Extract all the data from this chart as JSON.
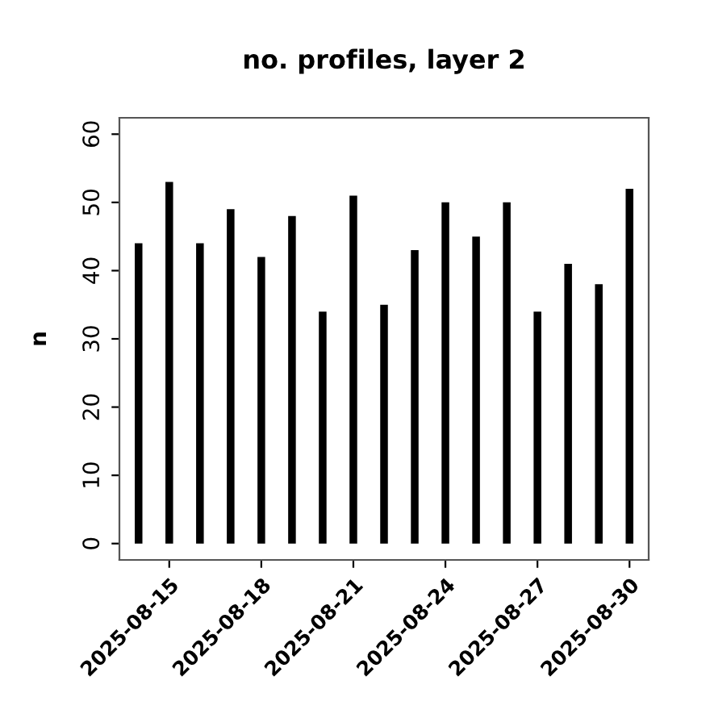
{
  "chart_data": {
    "type": "bar",
    "title": "no. profiles, layer 2",
    "ylabel": "n",
    "x": [
      "2025-08-14",
      "2025-08-15",
      "2025-08-16",
      "2025-08-17",
      "2025-08-18",
      "2025-08-19",
      "2025-08-20",
      "2025-08-21",
      "2025-08-22",
      "2025-08-23",
      "2025-08-24",
      "2025-08-25",
      "2025-08-26",
      "2025-08-27",
      "2025-08-28",
      "2025-08-29",
      "2025-08-30"
    ],
    "values": [
      44,
      53,
      44,
      49,
      42,
      48,
      34,
      51,
      35,
      43,
      50,
      45,
      50,
      34,
      41,
      38,
      52
    ],
    "color": "#000000",
    "xticks": [
      "2025-08-15",
      "2025-08-18",
      "2025-08-21",
      "2025-08-24",
      "2025-08-27",
      "2025-08-30"
    ],
    "xlim": [
      "2025-08-13T09:00",
      "2025-08-30T15:00"
    ],
    "ylim": [
      -2.4,
      62.4
    ],
    "yticks": [
      0,
      10,
      20,
      30,
      40,
      50,
      60
    ],
    "grid": false
  }
}
